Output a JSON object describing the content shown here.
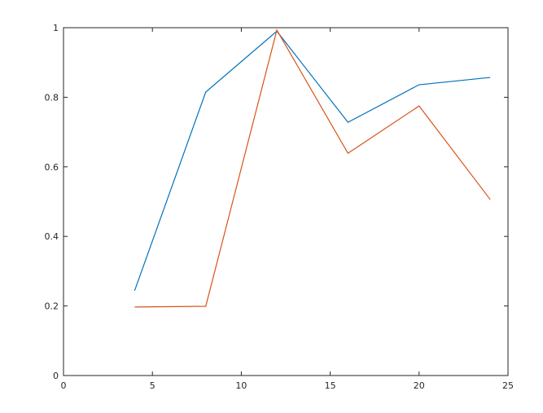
{
  "chart_data": {
    "type": "line",
    "title": "",
    "xlabel": "",
    "ylabel": "",
    "xlim": [
      0,
      25
    ],
    "ylim": [
      0,
      1
    ],
    "grid": false,
    "xticks": [
      "0",
      "5",
      "10",
      "15",
      "20",
      "25"
    ],
    "yticks": [
      "0",
      "0.2",
      "0.4",
      "0.6",
      "0.8",
      "1"
    ],
    "x": [
      4,
      8,
      12,
      16,
      20,
      24
    ],
    "series": [
      {
        "color": "#0072bd",
        "values": [
          0.244,
          0.815,
          0.99,
          0.728,
          0.836,
          0.857
        ]
      },
      {
        "color": "#d95319",
        "values": [
          0.197,
          0.199,
          0.993,
          0.639,
          0.775,
          0.506
        ]
      }
    ]
  }
}
